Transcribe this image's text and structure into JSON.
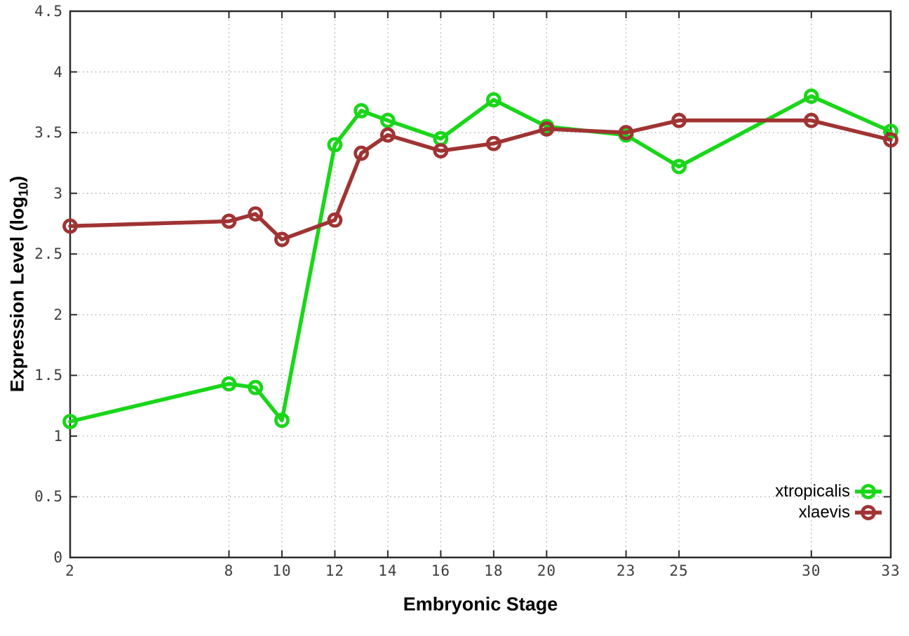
{
  "chart_data": {
    "type": "line",
    "title": "",
    "xlabel": "Embryonic Stage",
    "ylabel": "Expression Level (log10)",
    "ylabel_parts": {
      "pre": "Expression Level (log",
      "sub": "10",
      "post": ")"
    },
    "xlim": [
      2,
      33
    ],
    "ylim": [
      0,
      4.5
    ],
    "grid": true,
    "legend_position": "bottom-right",
    "x": [
      2,
      8,
      9,
      10,
      12,
      13,
      14,
      16,
      18,
      20,
      23,
      25,
      30,
      33
    ],
    "xtick_values": [
      2,
      8,
      10,
      12,
      14,
      16,
      18,
      20,
      23,
      25,
      30,
      33
    ],
    "xtick_labels": [
      "2",
      "8",
      "10",
      "12",
      "14",
      "16",
      "18",
      "20",
      "23",
      "25",
      "30",
      "33"
    ],
    "ytick_values": [
      0,
      0.5,
      1,
      1.5,
      2,
      2.5,
      3,
      3.5,
      4,
      4.5
    ],
    "ytick_labels": [
      "0",
      "0.5",
      "1",
      "1.5",
      "2",
      "2.5",
      "3",
      "3.5",
      "4",
      "4.5"
    ],
    "series": [
      {
        "name": "xtropicalis",
        "color": "#19d619",
        "values": [
          1.12,
          1.43,
          1.4,
          1.13,
          3.4,
          3.68,
          3.6,
          3.45,
          3.77,
          3.55,
          3.48,
          3.22,
          3.8,
          3.51
        ]
      },
      {
        "name": "xlaevis",
        "color": "#a03333",
        "values": [
          2.73,
          2.77,
          2.83,
          2.62,
          2.78,
          3.33,
          3.48,
          3.35,
          3.41,
          3.53,
          3.5,
          3.6,
          3.6,
          3.44
        ]
      }
    ]
  },
  "style": {
    "background": "#ffffff",
    "axis_color": "#2b2b2b",
    "grid_color": "#aaaaaa",
    "tick_text_color": "#3d3d3d",
    "text_color": "#000000"
  }
}
